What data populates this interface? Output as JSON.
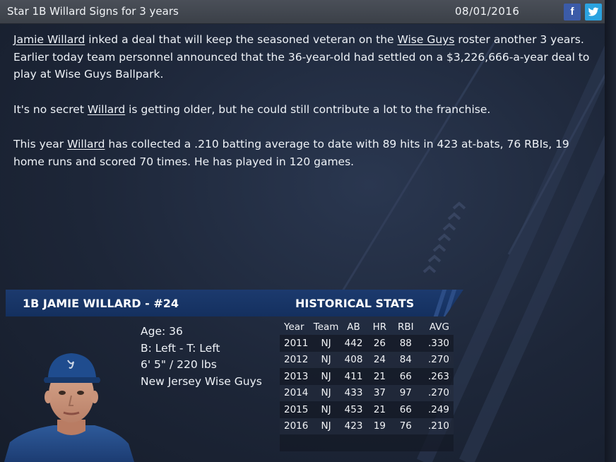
{
  "header": {
    "headline": "Star 1B Willard Signs for 3 years",
    "date": "08/01/2016",
    "facebook_label": "f",
    "twitter_label": "t"
  },
  "article": {
    "p1": {
      "a": "Jamie Willard",
      "b": " inked a deal that will keep the seasoned veteran on the ",
      "c": "Wise Guys",
      "d": " roster another 3 years. Earlier today team personnel announced that the 36-year-old had settled on a $3,226,666-a-year deal to play at Wise Guys Ballpark."
    },
    "p2": {
      "a": "It's no secret ",
      "b": "Willard",
      "c": " is getting older, but he could still contribute a lot to the franchise."
    },
    "p3": {
      "a": "This year ",
      "b": "Willard",
      "c": " has collected a .210 batting average to date with 89 hits in 423 at-bats, 76 RBIs, 19 home runs and scored 70 times. He has played in 120 games."
    }
  },
  "player": {
    "title": "1B JAMIE WILLARD - #24",
    "age": "Age: 36",
    "bats_throws": "B: Left - T: Left",
    "height_weight": "6' 5\" / 220 lbs",
    "team": "New Jersey Wise Guys"
  },
  "stats": {
    "title": "HISTORICAL STATS",
    "columns": [
      "Year",
      "Team",
      "AB",
      "HR",
      "RBI",
      "AVG"
    ],
    "rows": [
      [
        "2011",
        "NJ",
        "442",
        "26",
        "88",
        ".330"
      ],
      [
        "2012",
        "NJ",
        "408",
        "24",
        "84",
        ".270"
      ],
      [
        "2013",
        "NJ",
        "411",
        "21",
        "66",
        ".263"
      ],
      [
        "2014",
        "NJ",
        "433",
        "37",
        "97",
        ".270"
      ],
      [
        "2015",
        "NJ",
        "453",
        "21",
        "66",
        ".249"
      ],
      [
        "2016",
        "NJ",
        "423",
        "19",
        "76",
        ".210"
      ]
    ]
  },
  "colors": {
    "titlebar": "#43484f",
    "card_header": "#1a376a",
    "facebook": "#3b5ba8",
    "twitter": "#2ba3e0"
  }
}
